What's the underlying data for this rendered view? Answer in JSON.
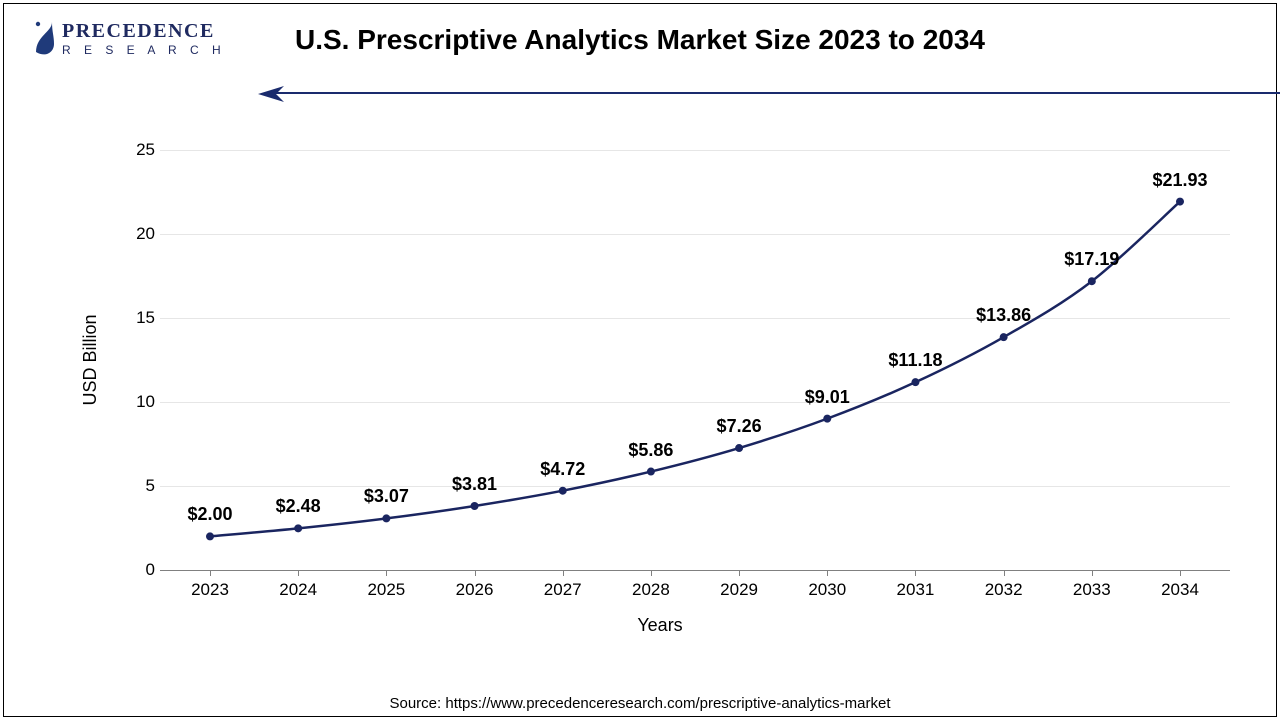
{
  "logo": {
    "top": "PRECEDENCE",
    "bottom": "R E S E A R C H"
  },
  "title": "U.S. Prescriptive Analytics Market Size 2023 to 2034",
  "chart": {
    "type": "line",
    "xlabel": "Years",
    "ylabel": "USD Billion",
    "ylim": [
      0,
      25
    ],
    "ytick_step": 5,
    "yticks": [
      0,
      5,
      10,
      15,
      20,
      25
    ],
    "years": [
      2023,
      2024,
      2025,
      2026,
      2027,
      2028,
      2029,
      2030,
      2031,
      2032,
      2033,
      2034
    ],
    "values": [
      2.0,
      2.48,
      3.07,
      3.81,
      4.72,
      5.86,
      7.26,
      9.01,
      11.18,
      13.86,
      17.19,
      21.93
    ],
    "labels": [
      "$2.00",
      "$2.48",
      "$3.07",
      "$3.81",
      "$4.72",
      "$5.86",
      "$7.26",
      "$9.01",
      "$11.18",
      "$13.86",
      "$17.19",
      "$21.93"
    ],
    "line_color": "#1a2560",
    "line_width": 2.5,
    "marker_color": "#1a2560",
    "marker_radius": 4,
    "grid_color": "#e6e6e6",
    "axis_color": "#808080",
    "label_fontsize": 18,
    "tick_fontsize": 17,
    "data_label_fontsize": 18
  },
  "arrow_color": "#1a2b6d",
  "source": "Source: https://www.precedenceresearch.com/prescriptive-analytics-market"
}
